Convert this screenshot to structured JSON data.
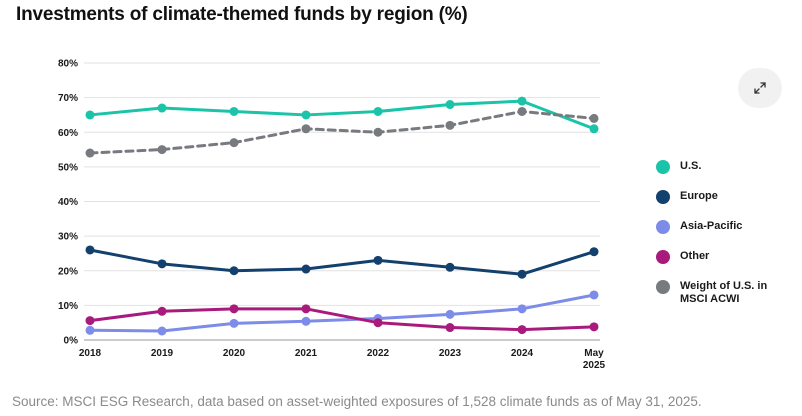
{
  "title": "Investments of climate-themed funds by region (%)",
  "source": "Source: MSCI ESG Research, data based on asset-weighted exposures of 1,528 climate funds as of May 31, 2025.",
  "expand_icon": "expand-arrows-icon",
  "chart_data": {
    "type": "line",
    "title": "Investments of climate-themed funds by region (%)",
    "xlabel": "",
    "ylabel": "",
    "categories": [
      "2018",
      "2019",
      "2020",
      "2021",
      "2022",
      "2023",
      "2024",
      "May 2025"
    ],
    "ylim": [
      0,
      80
    ],
    "yticks": [
      0,
      10,
      20,
      30,
      40,
      50,
      60,
      70,
      80
    ],
    "ytick_labels": [
      "0%",
      "10%",
      "20%",
      "30%",
      "40%",
      "50%",
      "60%",
      "70%",
      "80%"
    ],
    "grid": "horizontal",
    "legend_position": "right",
    "series": [
      {
        "name": "U.S.",
        "color": "#1bc4a9",
        "style": "solid",
        "values": [
          65,
          67,
          66,
          65,
          66,
          68,
          69,
          61
        ]
      },
      {
        "name": "Europe",
        "color": "#13406d",
        "style": "solid",
        "values": [
          26,
          22,
          20,
          20.5,
          23,
          21,
          19,
          25.5
        ]
      },
      {
        "name": "Asia-Pacific",
        "color": "#7c8ce8",
        "style": "solid",
        "values": [
          2.8,
          2.6,
          4.8,
          5.4,
          6.2,
          7.4,
          9,
          13
        ]
      },
      {
        "name": "Other",
        "color": "#a81a7c",
        "style": "solid",
        "values": [
          5.6,
          8.3,
          9,
          9,
          5,
          3.6,
          3,
          3.8
        ]
      },
      {
        "name": "Weight of U.S. in MSCI ACWI",
        "color": "#777a7e",
        "style": "dashed",
        "values": [
          54,
          55,
          57,
          61,
          60,
          62,
          66,
          64
        ]
      }
    ]
  }
}
